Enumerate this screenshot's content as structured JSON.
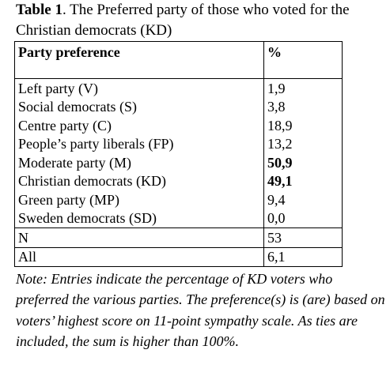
{
  "table": {
    "caption": {
      "label": "Table 1",
      "text": ". The Preferred party of those who voted for the Christian democrats (KD)"
    },
    "header": [
      "Party preference",
      "%"
    ],
    "rows": [
      [
        "Left party (V)",
        "1,9"
      ],
      [
        "Social democrats (S)",
        "3,8"
      ],
      [
        "Centre party (C)",
        "18,9"
      ],
      [
        "People’s party liberals (FP)",
        "13,2"
      ],
      [
        "Moderate party (M)",
        "50,9"
      ],
      [
        "Christian democrats (KD)",
        "49,1"
      ],
      [
        "Green party (MP)",
        "9,4"
      ],
      [
        "Sweden democrats (SD)",
        "0,0"
      ],
      [
        "N",
        "53"
      ],
      [
        "All",
        "6,1"
      ]
    ],
    "note": "Note: Entries indicate the percentage of KD voters who preferred the various parties. The preference(s) is (are) based on voters’ highest score on 11-point sympathy scale. As ties are included, the sum is higher than 100%."
  }
}
